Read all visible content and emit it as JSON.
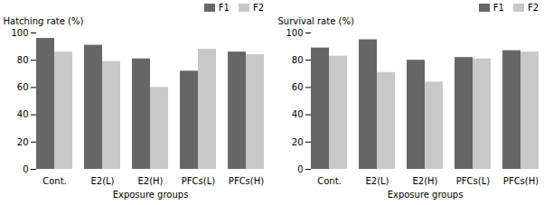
{
  "chart_data": [
    {
      "type": "bar",
      "categories": [
        "Cont.",
        "E2(L)",
        "E2(H)",
        "PFCs(L)",
        "PFCs(H)"
      ],
      "series": [
        {
          "name": "F1",
          "color": "#666666",
          "values": [
            96,
            91,
            81,
            72,
            86
          ]
        },
        {
          "name": "F2",
          "color": "#c8c8c8",
          "values": [
            86,
            79,
            60,
            88,
            84
          ]
        }
      ],
      "ylabel": "Hatching rate (%)",
      "xlabel": "Exposure groups",
      "ylim": [
        0,
        100
      ],
      "yticks": [
        0,
        20,
        40,
        60,
        80,
        100
      ],
      "legend": "upper right",
      "grid": false
    },
    {
      "type": "bar",
      "categories": [
        "Cont.",
        "E2(L)",
        "E2(H)",
        "PFCs(L)",
        "PFCs(H)"
      ],
      "series": [
        {
          "name": "F1",
          "color": "#666666",
          "values": [
            89,
            95,
            80,
            82,
            87
          ]
        },
        {
          "name": "F2",
          "color": "#c8c8c8",
          "values": [
            83,
            71,
            64,
            81,
            86
          ]
        }
      ],
      "ylabel": "Survival rate (%)",
      "xlabel": "Exposure groups",
      "ylim": [
        0,
        100
      ],
      "yticks": [
        0,
        20,
        40,
        60,
        80,
        100
      ],
      "legend": "upper right",
      "grid": false
    }
  ]
}
